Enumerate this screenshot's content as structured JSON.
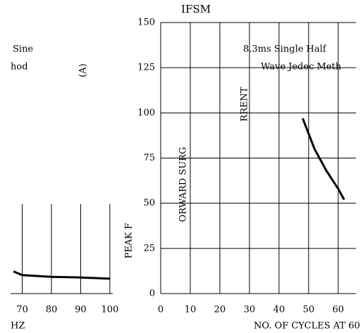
{
  "chart_data": [
    {
      "type": "line",
      "title": "IFSM",
      "annotations": [
        "8.3ms Single Half",
        "Wave Jedec Meth",
        "Sine",
        "hod"
      ],
      "y_label_fragments": [
        "(A)",
        "RRENT",
        "ORWARD SURG",
        "PEAK F"
      ],
      "x_label": "NO. OF CYCLES AT 60",
      "x": [
        48,
        52,
        56,
        60,
        62
      ],
      "series": [
        {
          "color": "#000000",
          "values": [
            97,
            80,
            68,
            58,
            52
          ]
        }
      ],
      "xlim": [
        0,
        66
      ],
      "xticks": [
        0,
        10,
        20,
        30,
        40,
        50,
        60
      ],
      "ylim": [
        0,
        150
      ],
      "yticks": [
        0,
        25,
        50,
        75,
        100,
        125,
        150
      ],
      "grid": true
    },
    {
      "type": "line",
      "x_label": "HZ",
      "x": [
        67,
        70,
        80,
        90,
        100
      ],
      "series": [
        {
          "color": "#000000",
          "values": [
            37,
            31,
            28,
            27,
            25
          ]
        }
      ],
      "xlim": [
        66,
        101
      ],
      "xticks": [
        70,
        80,
        90,
        100
      ],
      "ylim": [
        0,
        150
      ],
      "grid": true
    }
  ]
}
